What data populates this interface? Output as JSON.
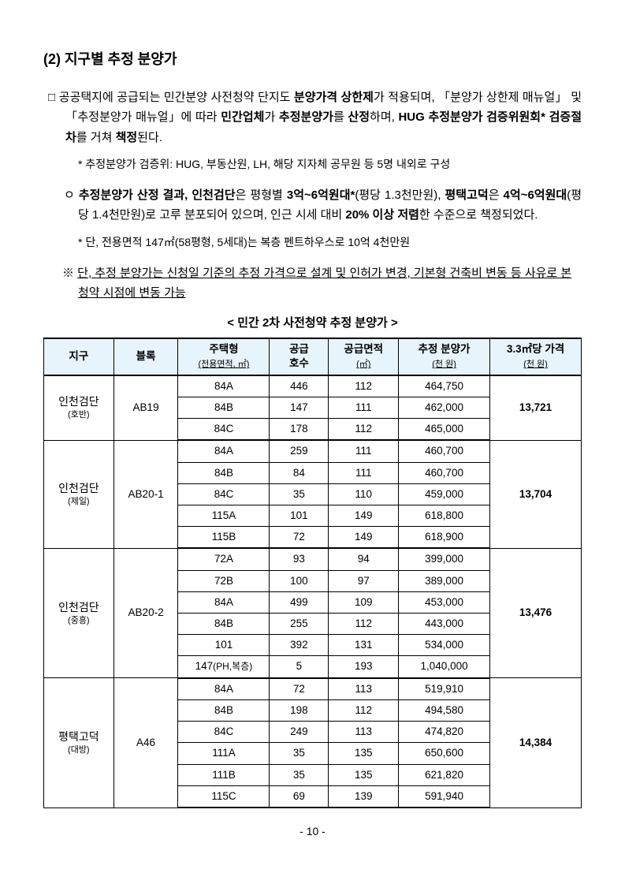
{
  "section": {
    "title": "(2) 지구별 추정 분양가"
  },
  "p1": {
    "bullet": "□",
    "t1": "공공택지에 공급되는 민간분양 사전청약 단지도 ",
    "b1": "분양가격 상한제",
    "t2": "가 적용되며, 「분양가 상한제 매뉴얼」 및 「추정분양가 매뉴얼」에 따라 ",
    "b2": "민간업체",
    "t3": "가 ",
    "b3": "추정분양가",
    "t4": "를 ",
    "b4": "산정",
    "t5": "하며, ",
    "b5": "HUG 추정분양가 검증위원회",
    "sup": "*",
    "t6": " ",
    "b6": "검증절차",
    "t7": "를 거쳐 ",
    "b7": "책정",
    "t8": "된다."
  },
  "n1": "* 추정분양가 검증위: HUG, 부동산원, LH, 해당 지자체 공무원 등 5명 내외로 구성",
  "p2": {
    "bullet": "ㅇ",
    "b1": "추정분양가 산정 결과, 인천검단",
    "t1": "은 평형별 ",
    "b2": "3억~6억원대",
    "sup": "*",
    "t2": "(평당 1.3천만원), ",
    "b3": "평택고덕",
    "t3": "은 ",
    "b4": "4억~6억원대",
    "t4": "(평당 1.4천만원)로 고루 분포되어 있으며, 인근 시세 대비 ",
    "b5": "20% 이상 저렴",
    "t5": "한 수준으로 책정되었다."
  },
  "n2": "* 단, 전용면적 147㎡(58평형, 5세대)는 복층 펜트하우스로 10억 4천만원",
  "caution": {
    "pre": "※ ",
    "u": "단, 추정 분양가는 신청일 기준의 추정 가격으로 설계 및 인허가 변경, 기본형 건축비 변동 등 사유로 본 청약 시점에 변동 가능"
  },
  "table_title": "< 민간 2차 사전청약 추정 분양가 >",
  "columns": {
    "c1": "지구",
    "c2": "블록",
    "c3a": "주택형",
    "c3b": "(전용면적, ㎡)",
    "c4a": "공급",
    "c4b": "호수",
    "c5a": "공급면적",
    "c5b": "(㎡)",
    "c6a": "추정 분양가",
    "c6b": "(천 원)",
    "c7a": "3.3㎡당 가격",
    "c7b": "(천 원)"
  },
  "groups": [
    {
      "district": "인천검단",
      "company": "(호반)",
      "block": "AB19",
      "price33": "13,721",
      "rows": [
        {
          "type": "84A",
          "units": "446",
          "area": "112",
          "price": "464,750"
        },
        {
          "type": "84B",
          "units": "147",
          "area": "111",
          "price": "462,000"
        },
        {
          "type": "84C",
          "units": "178",
          "area": "112",
          "price": "465,000"
        }
      ]
    },
    {
      "district": "인천검단",
      "company": "(제일)",
      "block": "AB20-1",
      "price33": "13,704",
      "rows": [
        {
          "type": "84A",
          "units": "259",
          "area": "111",
          "price": "460,700"
        },
        {
          "type": "84B",
          "units": "84",
          "area": "111",
          "price": "460,700"
        },
        {
          "type": "84C",
          "units": "35",
          "area": "110",
          "price": "459,000"
        },
        {
          "type": "115A",
          "units": "101",
          "area": "149",
          "price": "618,800"
        },
        {
          "type": "115B",
          "units": "72",
          "area": "149",
          "price": "618,900"
        }
      ]
    },
    {
      "district": "인천검단",
      "company": "(중흥)",
      "block": "AB20-2",
      "price33": "13,476",
      "rows": [
        {
          "type": "72A",
          "units": "93",
          "area": "94",
          "price": "399,000"
        },
        {
          "type": "72B",
          "units": "100",
          "area": "97",
          "price": "389,000"
        },
        {
          "type": "84A",
          "units": "499",
          "area": "109",
          "price": "453,000"
        },
        {
          "type": "84B",
          "units": "255",
          "area": "112",
          "price": "443,000"
        },
        {
          "type": "101",
          "units": "392",
          "area": "131",
          "price": "534,000"
        },
        {
          "type": "147",
          "type_sub": "(PH,복층)",
          "units": "5",
          "area": "193",
          "price": "1,040,000"
        }
      ]
    },
    {
      "district": "평택고덕",
      "company": "(대방)",
      "block": "A46",
      "price33": "14,384",
      "rows": [
        {
          "type": "84A",
          "units": "72",
          "area": "113",
          "price": "519,910"
        },
        {
          "type": "84B",
          "units": "198",
          "area": "112",
          "price": "494,580"
        },
        {
          "type": "84C",
          "units": "249",
          "area": "113",
          "price": "474,820"
        },
        {
          "type": "111A",
          "units": "35",
          "area": "135",
          "price": "650,600"
        },
        {
          "type": "111B",
          "units": "35",
          "area": "135",
          "price": "621,820"
        },
        {
          "type": "115C",
          "units": "69",
          "area": "139",
          "price": "591,940"
        }
      ]
    }
  ],
  "page": "- 10 -"
}
